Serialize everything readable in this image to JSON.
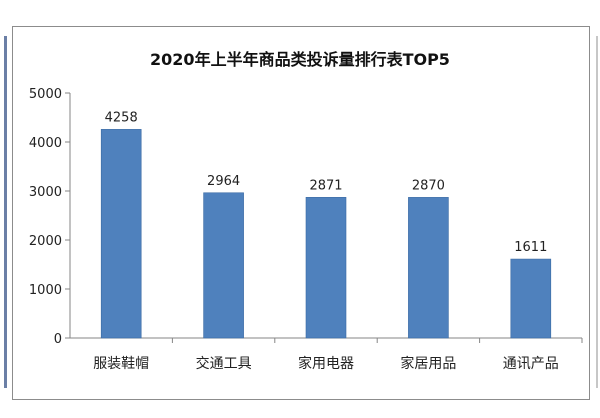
{
  "colors": {
    "bar": "#4f81bd",
    "bar_edge": "#3a6aa3",
    "axis": "#868686",
    "grid": "#d9d9d9"
  },
  "chart_data": {
    "type": "bar",
    "title": "2020年上半年商品类投诉量排行表TOP5",
    "categories": [
      "服装鞋帽",
      "交通工具",
      "家用电器",
      "家居用品",
      "通讯产品"
    ],
    "values": [
      4258,
      2964,
      2871,
      2870,
      1611
    ],
    "data_labels": [
      "4258",
      "2964",
      "2871",
      "2870",
      "1611"
    ],
    "ylim": [
      0,
      5000
    ],
    "yticks": [
      0,
      1000,
      2000,
      3000,
      4000,
      5000
    ],
    "ytick_labels": [
      "0",
      "1000",
      "2000",
      "3000",
      "4000",
      "5000"
    ],
    "grid": false,
    "legend": false
  }
}
